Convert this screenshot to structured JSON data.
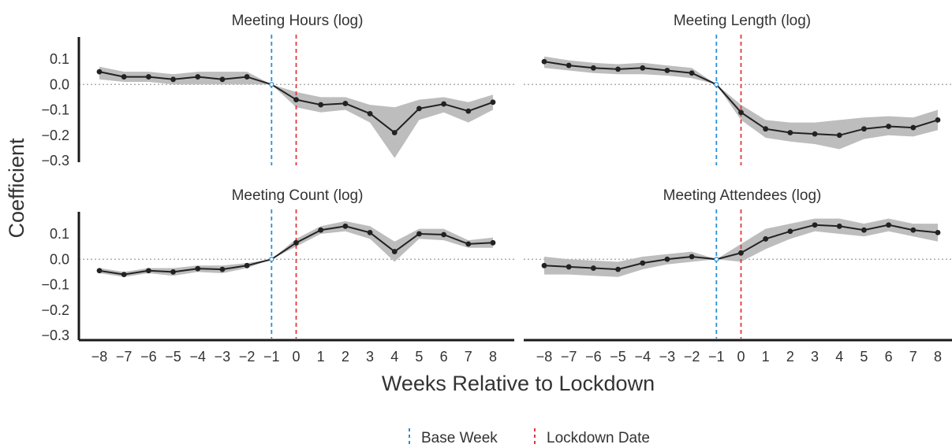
{
  "chart_data": {
    "type": "line",
    "xlabel": "Weeks Relative to Lockdown",
    "ylabel": "Coefficient",
    "x": [
      -8,
      -7,
      -6,
      -5,
      -4,
      -3,
      -2,
      -1,
      0,
      1,
      2,
      3,
      4,
      5,
      6,
      7,
      8
    ],
    "x_tick_labels": [
      "−8",
      "−7",
      "−6",
      "−5",
      "−4",
      "−3",
      "−2",
      "−1",
      "0",
      "1",
      "2",
      "3",
      "4",
      "5",
      "6",
      "7",
      "8"
    ],
    "y_ticks": [
      0.1,
      0.0,
      -0.1,
      -0.2,
      -0.3
    ],
    "y_tick_labels": [
      "0.1",
      "0.0",
      "−0.1",
      "−0.2",
      "−0.3"
    ],
    "ylim": [
      -0.3,
      0.1
    ],
    "zero_line": 0,
    "reference_lines": [
      {
        "name": "Base Week",
        "x": -1,
        "color": "#2b8fd6"
      },
      {
        "name": "Lockdown Date",
        "x": 0,
        "color": "#e0393e"
      }
    ],
    "legend": {
      "position": "bottom",
      "items": [
        {
          "label": "Base Week",
          "color": "#2b8fd6"
        },
        {
          "label": "Lockdown Date",
          "color": "#e0393e"
        }
      ]
    },
    "colors": {
      "line": "#222222",
      "band": "#bdbdbd"
    },
    "panels": [
      {
        "title": "Meeting Hours (log)",
        "values": [
          0.05,
          0.03,
          0.03,
          0.02,
          0.03,
          0.02,
          0.03,
          0.0,
          -0.06,
          -0.08,
          -0.075,
          -0.115,
          -0.19,
          -0.095,
          -0.077,
          -0.105,
          -0.07
        ],
        "lower": [
          0.02,
          0.01,
          0.01,
          0.0,
          0.0,
          0.0,
          0.0,
          0.0,
          -0.09,
          -0.11,
          -0.1,
          -0.15,
          -0.29,
          -0.14,
          -0.11,
          -0.15,
          -0.1
        ],
        "upper": [
          0.07,
          0.05,
          0.05,
          0.04,
          0.05,
          0.05,
          0.05,
          0.0,
          -0.03,
          -0.05,
          -0.05,
          -0.08,
          -0.09,
          -0.06,
          -0.05,
          -0.07,
          -0.04
        ]
      },
      {
        "title": "Meeting Length (log)",
        "values": [
          0.09,
          0.075,
          0.065,
          0.06,
          0.065,
          0.055,
          0.045,
          0.0,
          -0.11,
          -0.175,
          -0.19,
          -0.195,
          -0.2,
          -0.175,
          -0.165,
          -0.17,
          -0.14
        ],
        "lower": [
          0.065,
          0.055,
          0.045,
          0.04,
          0.04,
          0.035,
          0.025,
          0.0,
          -0.14,
          -0.21,
          -0.225,
          -0.235,
          -0.255,
          -0.215,
          -0.2,
          -0.205,
          -0.18
        ],
        "upper": [
          0.11,
          0.095,
          0.085,
          0.08,
          0.085,
          0.075,
          0.065,
          0.0,
          -0.08,
          -0.14,
          -0.15,
          -0.15,
          -0.14,
          -0.13,
          -0.125,
          -0.13,
          -0.1
        ]
      },
      {
        "title": "Meeting Count (log)",
        "values": [
          -0.045,
          -0.06,
          -0.045,
          -0.05,
          -0.037,
          -0.04,
          -0.025,
          0.0,
          0.065,
          0.115,
          0.13,
          0.105,
          0.03,
          0.1,
          0.097,
          0.06,
          0.065
        ],
        "lower": [
          -0.055,
          -0.07,
          -0.055,
          -0.065,
          -0.05,
          -0.055,
          -0.035,
          0.0,
          0.05,
          0.1,
          0.11,
          0.08,
          -0.01,
          0.08,
          0.075,
          0.045,
          0.045
        ],
        "upper": [
          -0.035,
          -0.05,
          -0.035,
          -0.035,
          -0.025,
          -0.025,
          -0.015,
          0.0,
          0.08,
          0.13,
          0.15,
          0.13,
          0.07,
          0.12,
          0.12,
          0.075,
          0.085
        ]
      },
      {
        "title": "Meeting Attendees (log)",
        "values": [
          -0.025,
          -0.03,
          -0.035,
          -0.04,
          -0.015,
          0.0,
          0.01,
          0.0,
          0.025,
          0.08,
          0.11,
          0.135,
          0.13,
          0.115,
          0.135,
          0.115,
          0.105
        ],
        "lower": [
          -0.06,
          -0.06,
          -0.065,
          -0.07,
          -0.04,
          -0.02,
          -0.01,
          0.0,
          -0.01,
          0.04,
          0.08,
          0.11,
          0.1,
          0.09,
          0.11,
          0.09,
          0.07
        ],
        "upper": [
          0.01,
          0.0,
          -0.005,
          -0.01,
          0.01,
          0.02,
          0.03,
          0.0,
          0.06,
          0.12,
          0.14,
          0.16,
          0.16,
          0.14,
          0.16,
          0.14,
          0.14
        ]
      }
    ]
  }
}
